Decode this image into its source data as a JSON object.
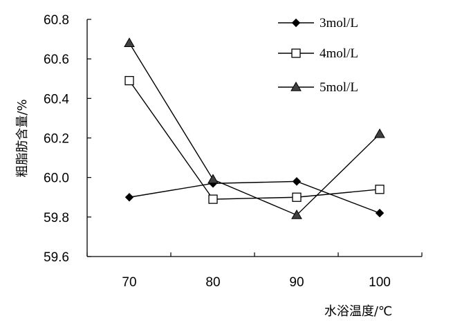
{
  "chart_data": {
    "type": "line",
    "xlabel": "水浴温度/℃",
    "ylabel": "粗脂肪含量/%",
    "categories": [
      "70",
      "80",
      "90",
      "100"
    ],
    "x_tick_labels": [
      "70",
      "80",
      "90",
      "100"
    ],
    "y_tick_labels": [
      "59.6",
      "59.8",
      "60.0",
      "60.2",
      "60.4",
      "60.6",
      "60.8"
    ],
    "ylim": [
      59.6,
      60.8
    ],
    "grid": false,
    "legend_position": "top-right",
    "series": [
      {
        "name": "3mol/L",
        "marker": "diamond",
        "values": [
          59.9,
          59.97,
          59.98,
          59.82
        ]
      },
      {
        "name": "4mol/L",
        "marker": "square",
        "values": [
          60.49,
          59.89,
          59.9,
          59.94
        ]
      },
      {
        "name": "5mol/L",
        "marker": "triangle",
        "values": [
          60.68,
          59.99,
          59.81,
          60.22
        ]
      }
    ]
  },
  "colors": {
    "line": "#000000",
    "triangle_fill": "#404040",
    "square_fill": "#ffffff"
  }
}
